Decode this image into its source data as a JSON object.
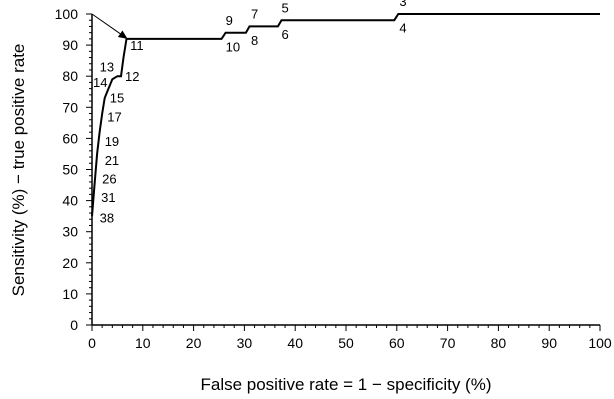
{
  "chart_data": {
    "type": "line",
    "title": "",
    "xlabel": "False positive rate = 1 − specificity (%)",
    "ylabel": "Sensitivity (%) − true positive rate",
    "xlim": [
      0,
      100
    ],
    "ylim": [
      0,
      100
    ],
    "x_ticks": [
      "0",
      "10",
      "20",
      "30",
      "40",
      "50",
      "60",
      "70",
      "80",
      "90",
      "100"
    ],
    "y_ticks": [
      "0",
      "10",
      "20",
      "30",
      "40",
      "50",
      "60",
      "70",
      "80",
      "90",
      "100"
    ],
    "grid": false,
    "legend": "none",
    "series": [
      {
        "x": [
          0,
          0.5,
          1,
          1.5,
          2,
          2.5,
          3,
          3.5,
          4,
          5,
          5.7,
          6.2,
          6.8,
          25.5,
          26.3,
          30.3,
          31,
          36.6,
          37.3,
          59.5,
          60.3,
          100
        ],
        "y": [
          35,
          45,
          55,
          62,
          68,
          73,
          75,
          77,
          79,
          80,
          80,
          86,
          92,
          92,
          94,
          94,
          96,
          96,
          98,
          98,
          100,
          100
        ]
      }
    ],
    "reference_line": {
      "x": [
        0,
        7
      ],
      "y": [
        100,
        92
      ]
    },
    "point_labels": [
      {
        "text": "3",
        "x": 60.5,
        "y": 102.5
      },
      {
        "text": "4",
        "x": 60.5,
        "y": 94
      },
      {
        "text": "5",
        "x": 37.3,
        "y": 100.5
      },
      {
        "text": "6",
        "x": 37.3,
        "y": 92
      },
      {
        "text": "7",
        "x": 31.3,
        "y": 98.5
      },
      {
        "text": "8",
        "x": 31.3,
        "y": 90
      },
      {
        "text": "9",
        "x": 26.3,
        "y": 96.5
      },
      {
        "text": "10",
        "x": 26.3,
        "y": 88
      },
      {
        "text": "11",
        "x": 7.5,
        "y": 88.5
      },
      {
        "text": "12",
        "x": 6.5,
        "y": 78.5
      },
      {
        "text": "13",
        "x": 1.5,
        "y": 81.5
      },
      {
        "text": "14",
        "x": 0.2,
        "y": 76.5
      },
      {
        "text": "15",
        "x": 3.5,
        "y": 71.5
      },
      {
        "text": "17",
        "x": 3,
        "y": 65.5
      },
      {
        "text": "19",
        "x": 2.5,
        "y": 57.5
      },
      {
        "text": "21",
        "x": 2.5,
        "y": 51.5
      },
      {
        "text": "26",
        "x": 2,
        "y": 45.5
      },
      {
        "text": "31",
        "x": 1.8,
        "y": 39.5
      },
      {
        "text": "38",
        "x": 1.5,
        "y": 33
      }
    ]
  }
}
